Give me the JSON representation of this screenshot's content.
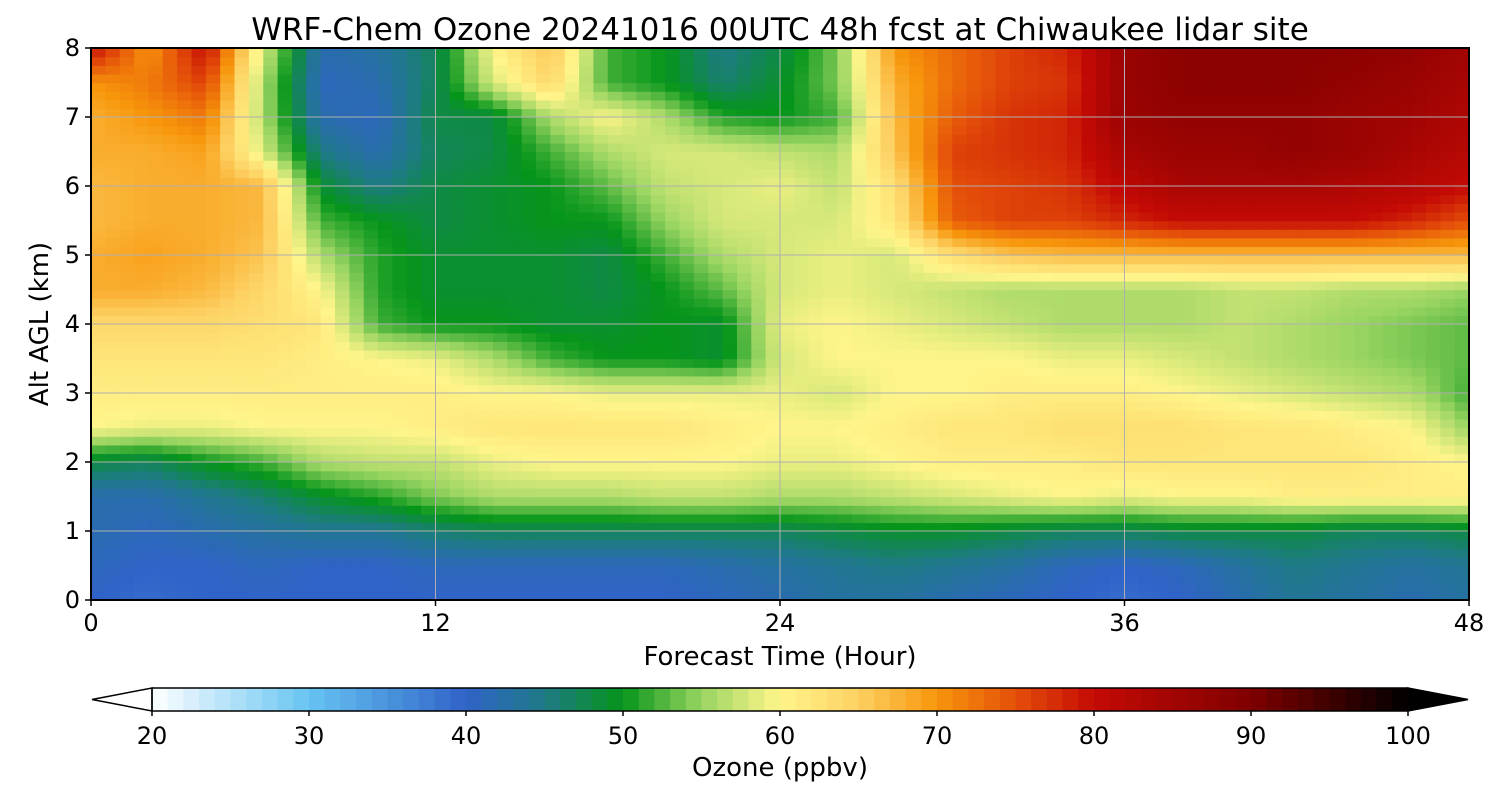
{
  "chart_data": {
    "type": "heatmap",
    "title": "WRF-Chem Ozone  20241016 00UTC 48h fcst at Chiwaukee lidar site",
    "xlabel": "Forecast Time (Hour)",
    "ylabel": "Alt AGL (km)",
    "xlim": [
      0,
      48
    ],
    "ylim": [
      0,
      8
    ],
    "x_ticks": [
      0,
      12,
      24,
      36,
      48
    ],
    "y_ticks": [
      0,
      1,
      2,
      3,
      4,
      5,
      6,
      7,
      8
    ],
    "grid": true,
    "x_hours": [
      0,
      2,
      4,
      6,
      8,
      10,
      12,
      14,
      16,
      18,
      20,
      22,
      24,
      26,
      28,
      30,
      32,
      34,
      36,
      38,
      40,
      42,
      44,
      46,
      48
    ],
    "y_km": [
      0,
      0.5,
      1,
      1.5,
      2,
      2.5,
      3,
      3.5,
      4,
      4.5,
      5,
      5.5,
      6,
      6.5,
      7,
      7.5,
      8
    ],
    "ozone_ppbv": [
      [
        40,
        39,
        40,
        40,
        40,
        40,
        40,
        40,
        40,
        40,
        40,
        41,
        42,
        43,
        43,
        42,
        41,
        40,
        39,
        40,
        42,
        44,
        43,
        42,
        43
      ],
      [
        41,
        40,
        40,
        41,
        40,
        40,
        41,
        41,
        41,
        41,
        41,
        42,
        43,
        44,
        45,
        44,
        43,
        41,
        40,
        41,
        43,
        45,
        44,
        43,
        44
      ],
      [
        42,
        41,
        42,
        43,
        44,
        44,
        46,
        47,
        47,
        47,
        47,
        47,
        47,
        48,
        49,
        49,
        48,
        47,
        47,
        48,
        48,
        48,
        47,
        47,
        48
      ],
      [
        42,
        42,
        44,
        46,
        49,
        51,
        54,
        56,
        56,
        56,
        57,
        57,
        56,
        56,
        57,
        58,
        59,
        60,
        59,
        60,
        60,
        61,
        61,
        61,
        61
      ],
      [
        48,
        47,
        50,
        52,
        56,
        57,
        57,
        59,
        60,
        60,
        60,
        60,
        59,
        59,
        60,
        61,
        61,
        61,
        62,
        62,
        62,
        62,
        62,
        61,
        60
      ],
      [
        60,
        59,
        59,
        60,
        60,
        60,
        61,
        62,
        62,
        62,
        62,
        61,
        60,
        60,
        61,
        62,
        62,
        63,
        63,
        63,
        62,
        62,
        61,
        60,
        55
      ],
      [
        61,
        61,
        61,
        61,
        61,
        61,
        61,
        60,
        60,
        59,
        59,
        59,
        59,
        58,
        60,
        60,
        61,
        61,
        61,
        60,
        59,
        58,
        57,
        56,
        52
      ],
      [
        62,
        62,
        62,
        62,
        61,
        60,
        59,
        56,
        52,
        50,
        50,
        49,
        58,
        60,
        60,
        60,
        60,
        59,
        59,
        58,
        57,
        56,
        55,
        54,
        53
      ],
      [
        64,
        64,
        64,
        63,
        62,
        52,
        50,
        50,
        49,
        49,
        50,
        49,
        59,
        60,
        59,
        58,
        57,
        56,
        56,
        56,
        57,
        56,
        55,
        54,
        53
      ],
      [
        68,
        68,
        67,
        64,
        60,
        51,
        49,
        49,
        49,
        48,
        50,
        53,
        58,
        59,
        58,
        57,
        56,
        56,
        56,
        56,
        57,
        57,
        56,
        56,
        55
      ],
      [
        68,
        69,
        68,
        66,
        56,
        51,
        49,
        49,
        49,
        48,
        52,
        56,
        58,
        59,
        58,
        63,
        66,
        67,
        67,
        67,
        67,
        67,
        67,
        67,
        67
      ],
      [
        67,
        68,
        68,
        67,
        52,
        50,
        48,
        49,
        50,
        50,
        55,
        58,
        58,
        58,
        62,
        74,
        76,
        76,
        78,
        80,
        80,
        80,
        80,
        78,
        75
      ],
      [
        67,
        68,
        68,
        67,
        49,
        45,
        48,
        49,
        50,
        53,
        57,
        58,
        59,
        57,
        63,
        75,
        76,
        77,
        81,
        84,
        84,
        84,
        83,
        82,
        80
      ],
      [
        68,
        68,
        69,
        58,
        45,
        42,
        47,
        48,
        52,
        56,
        58,
        58,
        57,
        56,
        66,
        76,
        77,
        78,
        84,
        86,
        86,
        87,
        86,
        84,
        82
      ],
      [
        68,
        70,
        72,
        56,
        42,
        41,
        48,
        48,
        56,
        60,
        56,
        51,
        50,
        52,
        67,
        74,
        77,
        78,
        86,
        87,
        87,
        87,
        86,
        85,
        83
      ],
      [
        70,
        72,
        76,
        56,
        41,
        42,
        47,
        58,
        64,
        52,
        50,
        46,
        49,
        54,
        68,
        73,
        76,
        77,
        86,
        88,
        88,
        88,
        87,
        86,
        84
      ],
      [
        80,
        70,
        80,
        58,
        42,
        43,
        47,
        60,
        66,
        52,
        50,
        45,
        48,
        54,
        70,
        73,
        76,
        78,
        86,
        88,
        88,
        88,
        88,
        87,
        85
      ]
    ],
    "colorbar": {
      "label": "Ozone  (ppbv)",
      "min": 20,
      "max": 100,
      "ticks": [
        20,
        30,
        40,
        50,
        60,
        70,
        80,
        90,
        100
      ],
      "extend": "both",
      "stops": [
        {
          "v": 20,
          "c": "#ffffff"
        },
        {
          "v": 30,
          "c": "#66c4f1"
        },
        {
          "v": 40,
          "c": "#3063c8"
        },
        {
          "v": 45,
          "c": "#1e7a86"
        },
        {
          "v": 50,
          "c": "#05951a"
        },
        {
          "v": 55,
          "c": "#9ad562"
        },
        {
          "v": 60,
          "c": "#fff58a"
        },
        {
          "v": 65,
          "c": "#fdd062"
        },
        {
          "v": 70,
          "c": "#f7960b"
        },
        {
          "v": 75,
          "c": "#e44f09"
        },
        {
          "v": 80,
          "c": "#c40a05"
        },
        {
          "v": 90,
          "c": "#7e0000"
        },
        {
          "v": 100,
          "c": "#000000"
        }
      ]
    }
  }
}
